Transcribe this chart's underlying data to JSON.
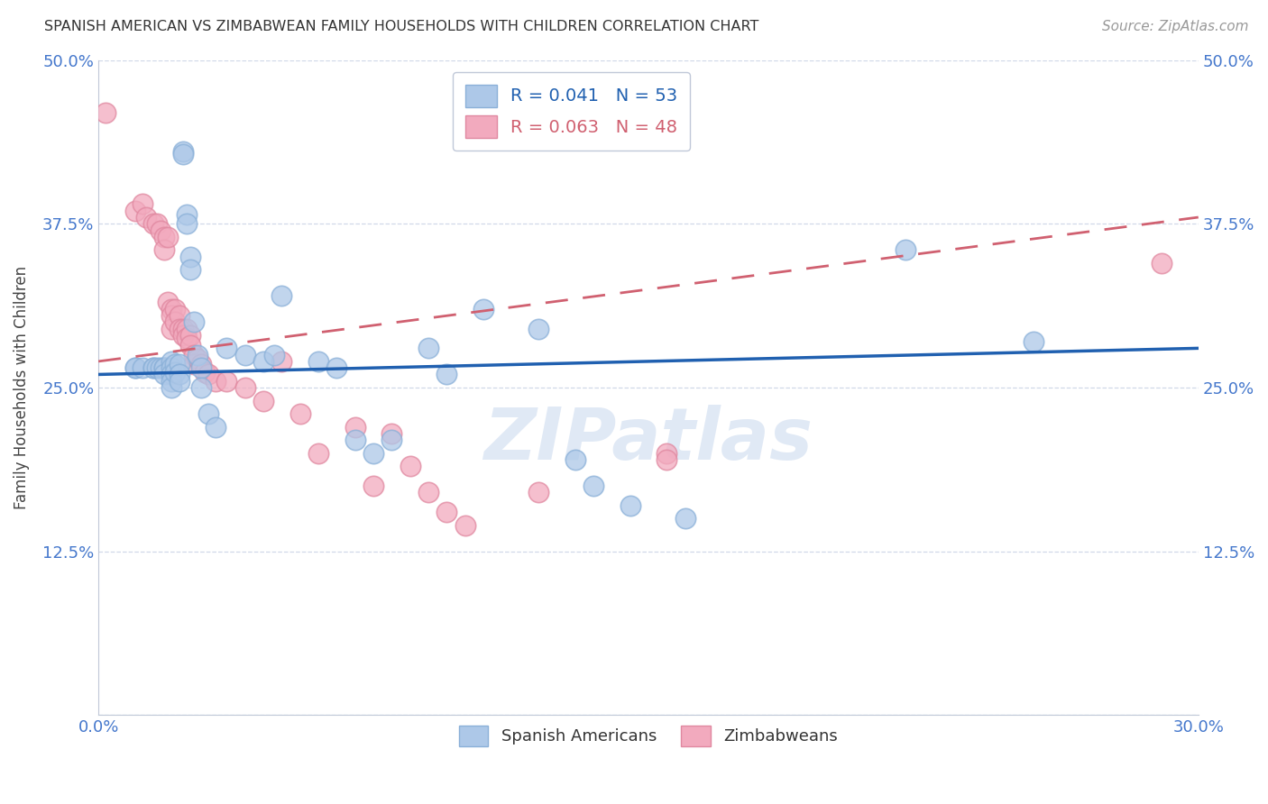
{
  "title": "SPANISH AMERICAN VS ZIMBABWEAN FAMILY HOUSEHOLDS WITH CHILDREN CORRELATION CHART",
  "source": "Source: ZipAtlas.com",
  "ylabel": "Family Households with Children",
  "x_min": 0.0,
  "x_max": 0.3,
  "y_min": 0.0,
  "y_max": 0.5,
  "x_ticks": [
    0.0,
    0.05,
    0.1,
    0.15,
    0.2,
    0.25,
    0.3
  ],
  "x_tick_labels": [
    "0.0%",
    "",
    "",
    "",
    "",
    "",
    "30.0%"
  ],
  "y_ticks": [
    0.0,
    0.125,
    0.25,
    0.375,
    0.5
  ],
  "y_tick_labels_left": [
    "",
    "12.5%",
    "25.0%",
    "37.5%",
    "50.0%"
  ],
  "y_tick_labels_right": [
    "",
    "12.5%",
    "25.0%",
    "37.5%",
    "50.0%"
  ],
  "blue_color": "#adc8e8",
  "pink_color": "#f2aabe",
  "blue_edge_color": "#8ab0d8",
  "pink_edge_color": "#e088a0",
  "blue_line_color": "#2060b0",
  "pink_line_color": "#d06070",
  "legend_blue_r": "R = 0.041",
  "legend_blue_n": "N = 53",
  "legend_pink_r": "R = 0.063",
  "legend_pink_n": "N = 48",
  "watermark": "ZIPatlas",
  "grid_color": "#d0d8e8",
  "axis_tick_color": "#4477cc",
  "blue_scatter_x": [
    0.01,
    0.01,
    0.012,
    0.015,
    0.015,
    0.016,
    0.017,
    0.018,
    0.018,
    0.018,
    0.02,
    0.02,
    0.02,
    0.02,
    0.02,
    0.021,
    0.021,
    0.022,
    0.022,
    0.022,
    0.023,
    0.023,
    0.024,
    0.024,
    0.025,
    0.025,
    0.026,
    0.027,
    0.028,
    0.028,
    0.03,
    0.032,
    0.035,
    0.04,
    0.045,
    0.048,
    0.05,
    0.06,
    0.065,
    0.07,
    0.075,
    0.08,
    0.09,
    0.095,
    0.1,
    0.105,
    0.12,
    0.13,
    0.135,
    0.145,
    0.16,
    0.22,
    0.255
  ],
  "blue_scatter_y": [
    0.265,
    0.265,
    0.265,
    0.265,
    0.265,
    0.265,
    0.265,
    0.265,
    0.265,
    0.26,
    0.27,
    0.265,
    0.26,
    0.255,
    0.25,
    0.268,
    0.262,
    0.268,
    0.26,
    0.255,
    0.43,
    0.428,
    0.382,
    0.375,
    0.35,
    0.34,
    0.3,
    0.275,
    0.265,
    0.25,
    0.23,
    0.22,
    0.28,
    0.275,
    0.27,
    0.275,
    0.32,
    0.27,
    0.265,
    0.21,
    0.2,
    0.21,
    0.28,
    0.26,
    0.46,
    0.31,
    0.295,
    0.195,
    0.175,
    0.16,
    0.15,
    0.355,
    0.285
  ],
  "pink_scatter_x": [
    0.002,
    0.01,
    0.012,
    0.013,
    0.015,
    0.016,
    0.017,
    0.018,
    0.018,
    0.019,
    0.019,
    0.02,
    0.02,
    0.02,
    0.021,
    0.021,
    0.022,
    0.022,
    0.023,
    0.023,
    0.024,
    0.024,
    0.025,
    0.025,
    0.026,
    0.026,
    0.027,
    0.028,
    0.029,
    0.03,
    0.032,
    0.035,
    0.04,
    0.045,
    0.05,
    0.055,
    0.06,
    0.07,
    0.075,
    0.08,
    0.085,
    0.09,
    0.095,
    0.1,
    0.12,
    0.155,
    0.155,
    0.29
  ],
  "pink_scatter_y": [
    0.46,
    0.385,
    0.39,
    0.38,
    0.375,
    0.375,
    0.37,
    0.365,
    0.355,
    0.365,
    0.315,
    0.31,
    0.305,
    0.295,
    0.31,
    0.3,
    0.305,
    0.295,
    0.295,
    0.29,
    0.295,
    0.288,
    0.29,
    0.282,
    0.275,
    0.268,
    0.272,
    0.268,
    0.262,
    0.26,
    0.255,
    0.255,
    0.25,
    0.24,
    0.27,
    0.23,
    0.2,
    0.22,
    0.175,
    0.215,
    0.19,
    0.17,
    0.155,
    0.145,
    0.17,
    0.2,
    0.195,
    0.345
  ],
  "blue_line_x": [
    0.0,
    0.3
  ],
  "blue_line_y": [
    0.26,
    0.28
  ],
  "pink_line_x": [
    0.0,
    0.3
  ],
  "pink_line_y": [
    0.27,
    0.38
  ]
}
